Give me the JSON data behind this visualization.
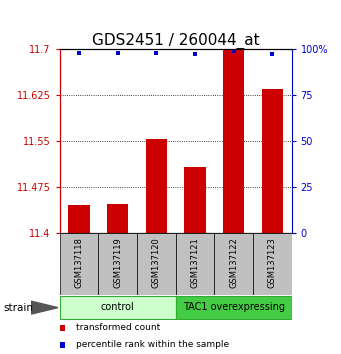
{
  "title": "GDS2451 / 260044_at",
  "samples": [
    "GSM137118",
    "GSM137119",
    "GSM137120",
    "GSM137121",
    "GSM137122",
    "GSM137123"
  ],
  "bar_values": [
    11.445,
    11.447,
    11.553,
    11.507,
    11.698,
    11.635
  ],
  "percentile_values": [
    98,
    98,
    98,
    97,
    99,
    97
  ],
  "ymin": 11.4,
  "ymax": 11.7,
  "yticks": [
    11.4,
    11.475,
    11.55,
    11.625,
    11.7
  ],
  "ytick_labels": [
    "11.4",
    "11.475",
    "11.55",
    "11.625",
    "11.7"
  ],
  "y2ticks": [
    0,
    25,
    50,
    75,
    100
  ],
  "y2tick_labels": [
    "0",
    "25",
    "50",
    "75",
    "100%"
  ],
  "bar_color": "#cc0000",
  "percentile_color": "#0000cc",
  "bar_width": 0.55,
  "tick_color_left": "#cc0000",
  "tick_color_right": "#0000cc",
  "legend_red_label": "transformed count",
  "legend_blue_label": "percentile rank within the sample",
  "x_label_area_color": "#c0c0c0",
  "control_color": "#ccffcc",
  "tac1_color": "#44cc44",
  "group_edge_color": "#33aa33",
  "title_fontsize": 11
}
